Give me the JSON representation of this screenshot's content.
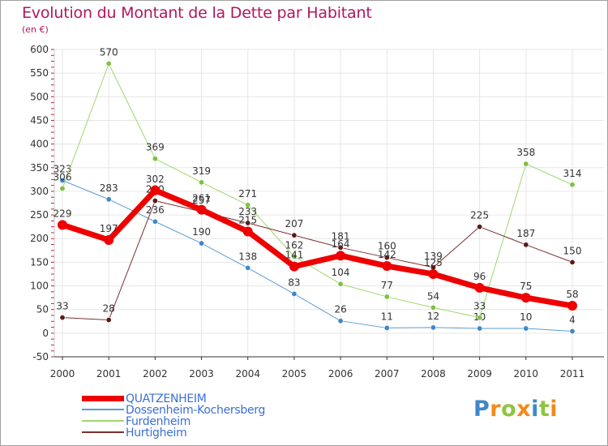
{
  "title": "Evolution du Montant de la Dette par Habitant",
  "subtitle": "(en €)",
  "brand": {
    "letters": [
      {
        "ch": "P",
        "color": "#3f87c9"
      },
      {
        "ch": "r",
        "color": "#f28a1a"
      },
      {
        "ch": "o",
        "color": "#8cc63f"
      },
      {
        "ch": "x",
        "color": "#f28a1a"
      },
      {
        "ch": "i",
        "color": "#3f87c9"
      },
      {
        "ch": "t",
        "color": "#8cc63f"
      },
      {
        "ch": "i",
        "color": "#f28a1a"
      }
    ]
  },
  "chart_data": {
    "type": "line",
    "title": "Evolution du Montant de la Dette par Habitant",
    "subtitle": "(en €)",
    "x": [
      "2000",
      "2001",
      "2002",
      "2003",
      "2004",
      "2005",
      "2006",
      "2007",
      "2008",
      "2009",
      "2010",
      "2011"
    ],
    "ylim": [
      -50,
      600
    ],
    "yticks": [
      -50,
      0,
      50,
      100,
      150,
      200,
      250,
      300,
      350,
      400,
      450,
      500,
      550,
      600
    ],
    "ytick_labels": [
      "-50",
      "0",
      "50",
      "100",
      "150",
      "200",
      "250",
      "300",
      "350",
      "400",
      "450",
      "500",
      "550",
      "600"
    ],
    "grid": true,
    "legend_position": "bottom-left",
    "series": [
      {
        "name": "Dossenheim-Kochersberg",
        "color": "#5b9bd5",
        "marker": "#3f87c9",
        "width": 1,
        "values": [
          323,
          283,
          236,
          190,
          138,
          83,
          26,
          11,
          12,
          10,
          10,
          4
        ],
        "labels": [
          "323",
          "283",
          "236",
          "190",
          "138",
          "83",
          "26",
          "11",
          "12",
          "10",
          "10",
          "4"
        ]
      },
      {
        "name": "Furdenheim",
        "color": "#9fd86b",
        "marker": "#7dc142",
        "width": 1,
        "values": [
          306,
          570,
          369,
          319,
          271,
          162,
          104,
          77,
          54,
          33,
          358,
          314
        ],
        "labels": [
          "306",
          "570",
          "369",
          "319",
          "271",
          "162",
          "104",
          "77",
          "54",
          "33",
          "358",
          "314"
        ]
      },
      {
        "name": "Hurtigheim",
        "color": "#7a3030",
        "marker": "#5c1a1a",
        "width": 1,
        "values": [
          33,
          28,
          280,
          257,
          233,
          207,
          181,
          160,
          139,
          225,
          187,
          150
        ],
        "labels": [
          "33",
          "28",
          "280",
          "257",
          "233",
          "207",
          "181",
          "160",
          "139",
          "225",
          "187",
          "150"
        ]
      },
      {
        "name": "QUATZENHEIM",
        "color": "#ee0000",
        "marker": "#ee0000",
        "width": 7,
        "values": [
          229,
          197,
          302,
          261,
          215,
          141,
          164,
          142,
          125,
          96,
          75,
          58
        ],
        "labels": [
          "229",
          "197",
          "302",
          "261",
          "215",
          "141",
          "164",
          "142",
          "125",
          "96",
          "75",
          "58"
        ]
      }
    ],
    "legend": [
      {
        "name": "QUATZENHEIM",
        "color": "#ee0000",
        "width": 7
      },
      {
        "name": "Dossenheim-Kochersberg",
        "color": "#5b9bd5",
        "width": 2
      },
      {
        "name": "Furdenheim",
        "color": "#9fd86b",
        "width": 2
      },
      {
        "name": "Hurtigheim",
        "color": "#7a3030",
        "width": 2
      }
    ]
  }
}
